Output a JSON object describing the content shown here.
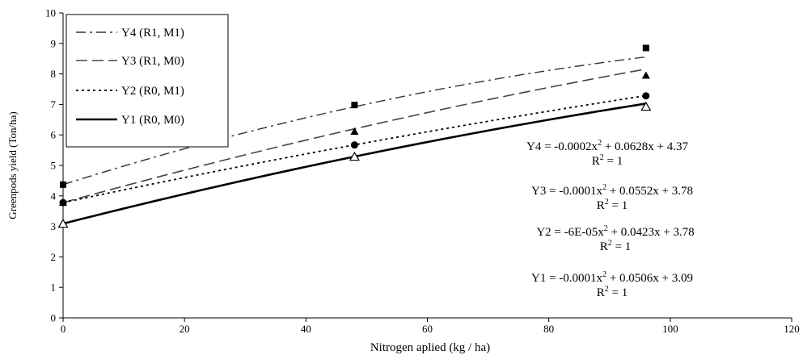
{
  "chart_data": {
    "type": "line",
    "title": "",
    "xlabel": "Nitrogen aplied (kg / ha)",
    "ylabel": "Greenpods yield (Ton/ha)",
    "xlim": [
      0,
      120
    ],
    "ylim": [
      0,
      10
    ],
    "xticks": [
      0,
      20,
      40,
      60,
      80,
      100,
      120
    ],
    "yticks": [
      0,
      1,
      2,
      3,
      4,
      5,
      6,
      7,
      8,
      9,
      10
    ],
    "grid": false,
    "legend_position": "top-left",
    "series": [
      {
        "name": "Y4 (R1, M1)",
        "dash": "dashdot",
        "marker": "square",
        "x": [
          0,
          48,
          96
        ],
        "y": [
          4.37,
          6.98,
          8.85
        ],
        "coef": [
          -0.0002,
          0.0628,
          4.37
        ]
      },
      {
        "name": "Y3 (R1, M0)",
        "dash": "longdash",
        "marker": "triangle",
        "x": [
          0,
          48,
          96
        ],
        "y": [
          3.78,
          6.11,
          7.95
        ],
        "coef": [
          -0.0001,
          0.0552,
          3.78
        ]
      },
      {
        "name": "Y2 (R0, M1)",
        "dash": "dotted",
        "marker": "circle",
        "x": [
          0,
          48,
          96
        ],
        "y": [
          3.78,
          5.67,
          7.28
        ],
        "coef": [
          -6e-05,
          0.0423,
          3.78
        ]
      },
      {
        "name": "Y1 (R0, M0)",
        "dash": "solid",
        "marker": "triangle-open",
        "x": [
          0,
          48,
          96
        ],
        "y": [
          3.09,
          5.29,
          6.93
        ],
        "coef": [
          -0.0001,
          0.0506,
          3.09
        ]
      }
    ],
    "annotations": [
      {
        "eq_left": "Y4 = -0.0002x",
        "eq_sup": "2",
        "eq_right": " + 0.0628x + 4.37",
        "r2_left": "R",
        "r2_sup": "2",
        "r2_right": " = 1"
      },
      {
        "eq_left": "Y3 = -0.0001x",
        "eq_sup": "2",
        "eq_right": " + 0.0552x + 3.78",
        "r2_left": "R",
        "r2_sup": "2",
        "r2_right": " = 1"
      },
      {
        "eq_left": "Y2 = -6E-05x",
        "eq_sup": "2",
        "eq_right": " + 0.0423x + 3.78",
        "r2_left": "R",
        "r2_sup": "2",
        "r2_right": " = 1"
      },
      {
        "eq_left": "Y1 = -0.0001x",
        "eq_sup": "2",
        "eq_right": " + 0.0506x + 3.09",
        "r2_left": "R",
        "r2_sup": "2",
        "r2_right": " = 1"
      }
    ]
  }
}
